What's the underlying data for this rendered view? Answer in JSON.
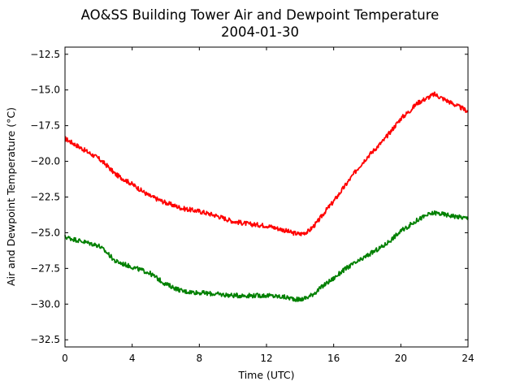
{
  "chart_data": {
    "type": "line",
    "title": "AO&SS Building Tower Air and Dewpoint Temperature",
    "subtitle": "2004-01-30",
    "xlabel": "Time (UTC)",
    "ylabel": "Air and Dewpoint Temperature (°C)",
    "xlim": [
      0,
      24
    ],
    "ylim": [
      -33,
      -12
    ],
    "x_ticks": [
      0,
      4,
      8,
      12,
      16,
      20,
      24
    ],
    "x_tick_labels": [
      "0",
      "4",
      "8",
      "12",
      "16",
      "20",
      "24"
    ],
    "y_ticks": [
      -32.5,
      -30.0,
      -27.5,
      -25.0,
      -22.5,
      -20.0,
      -17.5,
      -15.0,
      -12.5
    ],
    "y_tick_labels": [
      "−32.5",
      "−30.0",
      "−27.5",
      "−25.0",
      "−22.5",
      "−20.0",
      "−17.5",
      "−15.0",
      "−12.5"
    ],
    "grid": false,
    "legend": "none",
    "series": [
      {
        "color": "#ff0000",
        "x": [
          0,
          1,
          2,
          2.5,
          3,
          4,
          5,
          6,
          7,
          8,
          9,
          10,
          11,
          12,
          13,
          13.5,
          14,
          14.5,
          15,
          15.5,
          16,
          16.5,
          17,
          17.5,
          18,
          19,
          20,
          20.5,
          21,
          21.5,
          22,
          22.5,
          23,
          24
        ],
        "y": [
          -18.4,
          -19.1,
          -19.8,
          -20.3,
          -20.9,
          -21.6,
          -22.4,
          -22.9,
          -23.3,
          -23.5,
          -23.8,
          -24.2,
          -24.4,
          -24.5,
          -24.8,
          -25.0,
          -25.1,
          -24.9,
          -24.3,
          -23.5,
          -22.8,
          -22.0,
          -21.2,
          -20.4,
          -19.7,
          -18.5,
          -17.0,
          -16.5,
          -15.9,
          -15.6,
          -15.3,
          -15.6,
          -15.9,
          -16.5
        ]
      },
      {
        "color": "#008000",
        "x": [
          0,
          1,
          2,
          2.5,
          3,
          4,
          5,
          6,
          7,
          8,
          9,
          10,
          11,
          12,
          13,
          13.5,
          14,
          14.5,
          15,
          15.5,
          16,
          16.5,
          17,
          17.5,
          18,
          19,
          20,
          20.5,
          21,
          21.5,
          22,
          22.5,
          23,
          24
        ],
        "y": [
          -25.3,
          -25.6,
          -25.9,
          -26.4,
          -27.0,
          -27.4,
          -27.8,
          -28.6,
          -29.1,
          -29.2,
          -29.3,
          -29.4,
          -29.4,
          -29.4,
          -29.5,
          -29.6,
          -29.7,
          -29.5,
          -29.1,
          -28.6,
          -28.2,
          -27.7,
          -27.3,
          -27.0,
          -26.6,
          -25.9,
          -24.9,
          -24.5,
          -24.1,
          -23.8,
          -23.6,
          -23.7,
          -23.8,
          -24.0
        ]
      }
    ]
  }
}
